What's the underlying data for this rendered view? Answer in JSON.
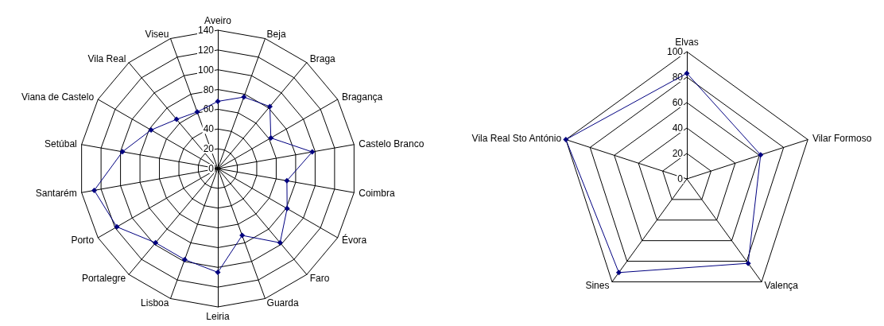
{
  "chart_data": [
    {
      "type": "radar",
      "categories": [
        "Aveiro",
        "Beja",
        "Braga",
        "Bragança",
        "Castelo Branco",
        "Coimbra",
        "Évora",
        "Faro",
        "Guarda",
        "Leiria",
        "Lisboa",
        "Portalegre",
        "Porto",
        "Santarém",
        "Setúbal",
        "Viana de Castelo",
        "Vila Real",
        "Viseu"
      ],
      "series": [
        {
          "color": "#000080",
          "values": [
            68,
            77,
            82,
            62,
            97,
            71,
            81,
            98,
            72,
            105,
            98,
            98,
            118,
            127,
            98,
            78,
            65,
            61
          ]
        }
      ],
      "ylim": [
        0,
        140
      ],
      "yticks": [
        0,
        20,
        40,
        60,
        80,
        100,
        120,
        140
      ],
      "grid": true,
      "marker": "diamond"
    },
    {
      "type": "radar",
      "categories": [
        "Elvas",
        "Vilar Formoso",
        "Valença",
        "Sines",
        "Vila Real Sto António"
      ],
      "series": [
        {
          "color": "#000080",
          "values": [
            83,
            61,
            82,
            91,
            100
          ]
        }
      ],
      "ylim": [
        0,
        100
      ],
      "yticks": [
        0,
        20,
        40,
        60,
        80,
        100
      ],
      "grid": true,
      "marker": "diamond"
    }
  ]
}
